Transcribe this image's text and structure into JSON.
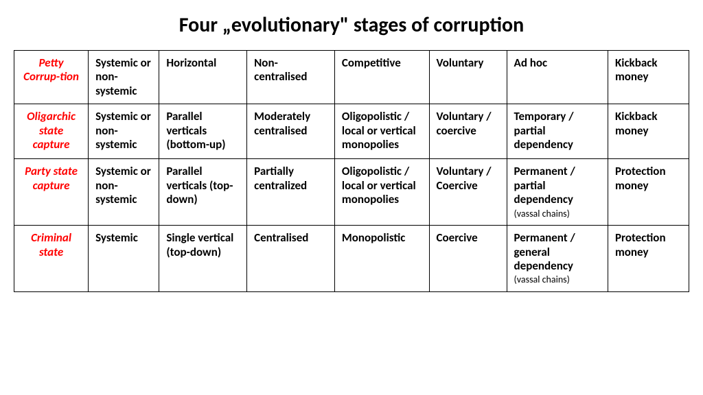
{
  "title": "Four „evolutionary\" stages of corruption",
  "table": {
    "label_color": "#ff0000",
    "border_color": "#000000",
    "text_color": "#000000",
    "rows": [
      {
        "label": "Petty Corrup-tion",
        "cells": [
          "Systemic or non-systemic",
          "Horizontal",
          "Non-centralised",
          "Competitive",
          "Voluntary",
          "Ad hoc",
          "Kickback money"
        ],
        "sub": {
          "5": ""
        }
      },
      {
        "label": "Oligarchic state capture",
        "cells": [
          "Systemic or non-systemic",
          "Parallel verticals (bottom-up)",
          "Moderately centralised",
          "Oligopolistic / local or vertical monopolies",
          "Voluntary / coercive",
          "Temporary / partial dependency",
          "Kickback money"
        ],
        "sub": {
          "5": ""
        }
      },
      {
        "label": "Party state capture",
        "cells": [
          "Systemic or non-systemic",
          "Parallel verticals (top-down)",
          "Partially centralized",
          "Oligopolistic / local or vertical monopolies",
          "Voluntary / Coercive",
          "Permanent / partial dependency",
          "Protection money"
        ],
        "sub": {
          "5": "(vassal chains)"
        }
      },
      {
        "label": "Criminal state",
        "cells": [
          "Systemic",
          "Single vertical (top-down)",
          "Centralised",
          "Monopolistic",
          "Coercive",
          "Permanent / general dependency",
          "Protection money"
        ],
        "sub": {
          "5": "(vassal chains)"
        }
      }
    ]
  }
}
